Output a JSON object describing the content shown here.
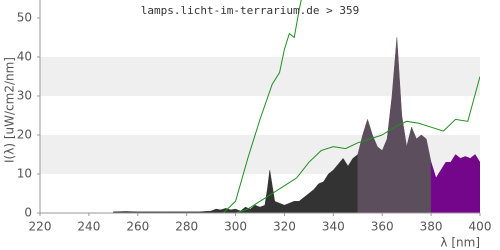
{
  "chart_data": {
    "type": "line",
    "title": "lamps.licht-im-terrarium.de > 359",
    "x_label": "λ [nm]",
    "y_label": "I(λ)  [uW/cm2/nm]",
    "xlim": [
      220,
      400
    ],
    "ylim": [
      0,
      54.6
    ],
    "xticks": [
      220,
      240,
      260,
      280,
      300,
      320,
      340,
      360,
      380,
      400
    ],
    "yticks": [
      0,
      10,
      20,
      30,
      40,
      50
    ],
    "bands": [
      [
        10,
        20
      ],
      [
        30,
        40
      ]
    ],
    "band_color": "#efefef",
    "series": [
      {
        "type": "area",
        "color": "#333333",
        "x": [
          250,
          255,
          260,
          265,
          270,
          275,
          280,
          285,
          290,
          292,
          294,
          296,
          298,
          300,
          302,
          304,
          306,
          308,
          310,
          312,
          313,
          314,
          315,
          316,
          318,
          320,
          322,
          324,
          326,
          328,
          330,
          332,
          334,
          336,
          338,
          340,
          342,
          344,
          346,
          348,
          350
        ],
        "values": [
          0.3,
          0.4,
          0.3,
          0.3,
          0.3,
          0.3,
          0.3,
          0.3,
          0.5,
          1,
          0.8,
          1.2,
          0.8,
          1,
          0.5,
          1.5,
          1,
          2,
          1.5,
          2,
          6,
          11,
          7,
          3,
          2.5,
          2,
          2.5,
          3,
          3,
          4,
          5,
          6,
          7.5,
          8,
          10,
          11,
          12.5,
          14,
          12,
          14,
          15
        ]
      },
      {
        "type": "area",
        "color": "#5c4e5c",
        "x": [
          350,
          352,
          354,
          356,
          358,
          360,
          362,
          364,
          366,
          368,
          370,
          372,
          374,
          376,
          378,
          380
        ],
        "values": [
          15,
          20,
          24,
          20,
          17,
          16,
          19,
          30,
          45,
          25,
          17,
          22,
          19,
          20,
          19,
          13
        ]
      },
      {
        "type": "area",
        "color": "#73068a",
        "x": [
          380,
          382,
          384,
          386,
          388,
          390,
          392,
          394,
          396,
          398,
          400
        ],
        "values": [
          13,
          9,
          11,
          13,
          13,
          15,
          14,
          14.5,
          14,
          15,
          13
        ]
      },
      {
        "type": "line",
        "color": "#1f8f1f",
        "x": [
          295,
          300,
          305,
          310,
          315,
          318,
          320,
          322,
          324,
          326,
          328
        ],
        "values": [
          0,
          3,
          14,
          24,
          33,
          36,
          42,
          46,
          45,
          52,
          58
        ]
      },
      {
        "type": "line",
        "color": "#1f8f1f",
        "x": [
          300,
          305,
          310,
          315,
          320,
          325,
          330,
          335,
          340,
          345,
          350,
          355,
          360,
          365,
          370,
          375,
          380,
          385,
          390,
          395,
          400
        ],
        "values": [
          0,
          1,
          3,
          5,
          7,
          9,
          13,
          16,
          17,
          16.5,
          18,
          19,
          20,
          22,
          23.5,
          23,
          22,
          21,
          24,
          23.5,
          35
        ]
      }
    ]
  }
}
